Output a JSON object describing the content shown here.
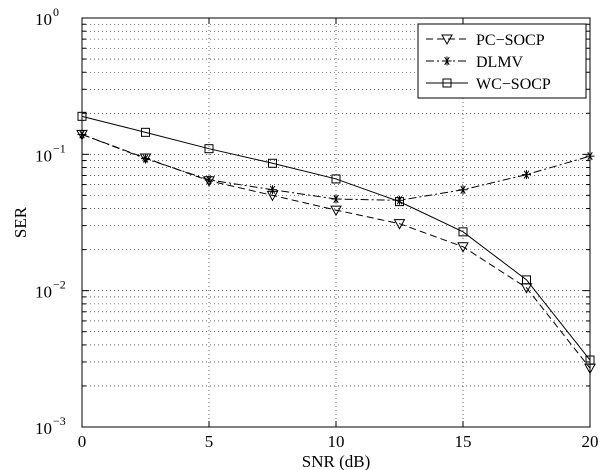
{
  "chart_data": {
    "type": "line",
    "xlabel": "SNR (dB)",
    "ylabel": "SER",
    "xlim": [
      0,
      20
    ],
    "ylim": [
      0.001,
      1
    ],
    "yscale": "log",
    "xticks": [
      0,
      5,
      10,
      15,
      20
    ],
    "xtick_labels": [
      "0",
      "5",
      "10",
      "15",
      "20"
    ],
    "yticks": [
      0.001,
      0.01,
      0.1,
      1
    ],
    "ytick_labels": [
      {
        "base": "10",
        "exp": "−3"
      },
      {
        "base": "10",
        "exp": "−2"
      },
      {
        "base": "10",
        "exp": "−1"
      },
      {
        "base": "10",
        "exp": "0"
      }
    ],
    "grid": true,
    "grid_style": "dotted",
    "legend_position": "top-right",
    "x": [
      0,
      2.5,
      5,
      7.5,
      10,
      12.5,
      15,
      17.5,
      20
    ],
    "series": [
      {
        "name": "PC−SOCP",
        "marker": "triangle-down",
        "linestyle": "dashed",
        "values": [
          0.14,
          0.094,
          0.064,
          0.05,
          0.039,
          0.031,
          0.021,
          0.0105,
          0.0027
        ]
      },
      {
        "name": "DLMV",
        "marker": "star",
        "linestyle": "dashdot",
        "values": [
          0.14,
          0.093,
          0.065,
          0.055,
          0.047,
          0.046,
          0.055,
          0.071,
          0.097
        ]
      },
      {
        "name": "WC−SOCP",
        "marker": "square",
        "linestyle": "solid",
        "values": [
          0.19,
          0.145,
          0.11,
          0.086,
          0.066,
          0.045,
          0.027,
          0.012,
          0.0031
        ]
      }
    ]
  }
}
